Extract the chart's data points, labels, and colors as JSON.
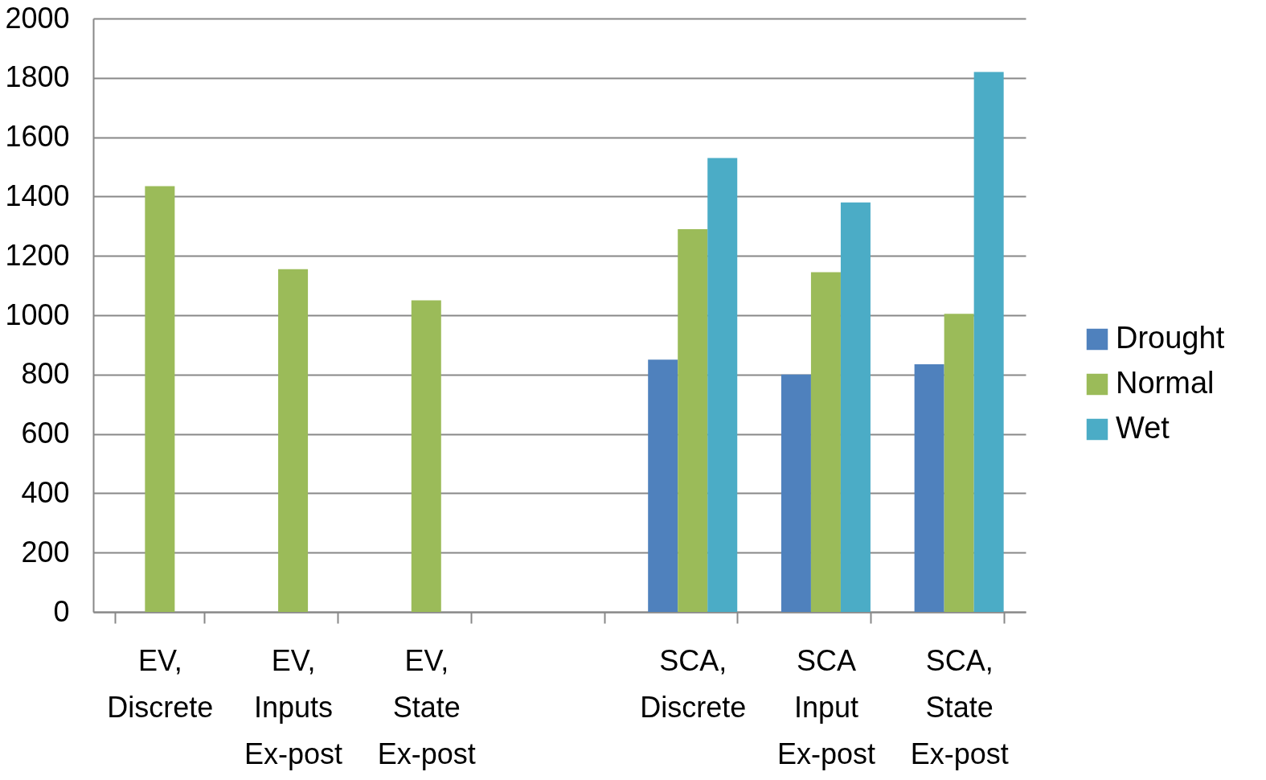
{
  "chart_data": {
    "type": "bar",
    "categories": [
      "EV,\nDiscrete",
      "EV,\nInputs\nEx-post",
      "EV,\nState\nEx-post",
      null,
      "SCA,\nDiscrete",
      "SCA\nInput\nEx-post",
      "SCA,\nState\nEx-post"
    ],
    "series": [
      {
        "name": "Drought",
        "color": "#4f81bd",
        "values": [
          null,
          null,
          null,
          null,
          850,
          800,
          835
        ]
      },
      {
        "name": "Normal",
        "color": "#9bbb59",
        "values": [
          1435,
          1155,
          1050,
          null,
          1290,
          1145,
          1005
        ]
      },
      {
        "name": "Wet",
        "color": "#4bacc6",
        "values": [
          null,
          null,
          null,
          null,
          1530,
          1380,
          1820
        ]
      }
    ],
    "ylim": [
      0,
      2000
    ],
    "yticks": [
      0,
      200,
      400,
      600,
      800,
      1000,
      1200,
      1400,
      1600,
      1800,
      2000
    ],
    "grid": "y",
    "legend": "right"
  }
}
